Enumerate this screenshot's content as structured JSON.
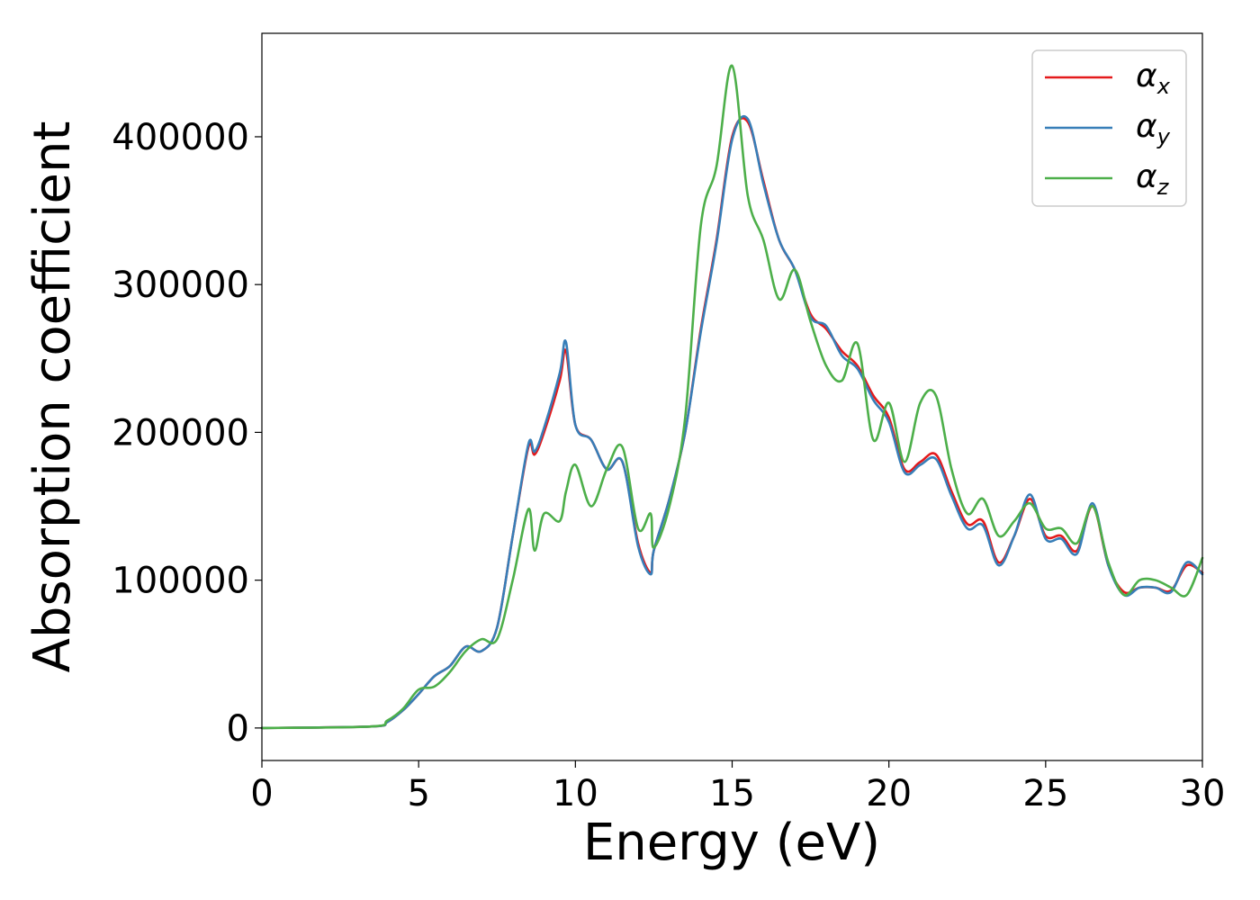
{
  "chart_data": {
    "type": "line",
    "title": "",
    "xlabel": "Energy (eV)",
    "ylabel": "Absorption coefficient",
    "xlim": [
      0,
      30
    ],
    "ylim": [
      -22000,
      470000
    ],
    "xticks": [
      0,
      5,
      10,
      15,
      20,
      25,
      30
    ],
    "yticks": [
      0,
      100000,
      200000,
      300000,
      400000
    ],
    "grid": false,
    "legend_position": "top-right",
    "x": [
      0,
      3.5,
      4.0,
      4.5,
      5.0,
      5.5,
      6.0,
      6.5,
      7.0,
      7.5,
      8.0,
      8.5,
      8.7,
      9.0,
      9.5,
      9.7,
      10.0,
      10.5,
      11.0,
      11.5,
      12.0,
      12.4,
      12.5,
      13.0,
      13.5,
      14.0,
      14.5,
      15.0,
      15.5,
      16.0,
      16.5,
      17.0,
      17.5,
      18.0,
      18.5,
      19.0,
      19.5,
      20.0,
      20.5,
      21.0,
      21.5,
      22.0,
      22.5,
      23.0,
      23.5,
      24.0,
      24.5,
      25.0,
      25.5,
      26.0,
      26.5,
      27.0,
      27.5,
      28.0,
      28.5,
      29.0,
      29.5,
      30.0
    ],
    "series": [
      {
        "name": "α",
        "subscript": "x",
        "color": "#e41a1c",
        "values": [
          0,
          1000,
          4000,
          12000,
          23000,
          35000,
          42000,
          55000,
          52000,
          68000,
          130000,
          190000,
          185000,
          200000,
          235000,
          255000,
          205000,
          195000,
          175000,
          180000,
          125000,
          105000,
          120000,
          155000,
          200000,
          270000,
          330000,
          400000,
          410000,
          370000,
          330000,
          310000,
          280000,
          270000,
          255000,
          245000,
          225000,
          210000,
          175000,
          180000,
          185000,
          160000,
          138000,
          140000,
          112000,
          130000,
          155000,
          130000,
          130000,
          120000,
          150000,
          110000,
          92000,
          95000,
          95000,
          93000,
          110000,
          105000
        ]
      },
      {
        "name": "α",
        "subscript": "y",
        "color": "#377eb8",
        "values": [
          0,
          1000,
          4000,
          12000,
          23000,
          35000,
          42000,
          55000,
          52000,
          68000,
          130000,
          192000,
          187000,
          203000,
          240000,
          261000,
          205000,
          195000,
          175000,
          180000,
          123000,
          104000,
          120000,
          155000,
          200000,
          268000,
          328000,
          398000,
          412000,
          368000,
          330000,
          310000,
          278000,
          272000,
          252000,
          243000,
          222000,
          207000,
          173000,
          178000,
          182000,
          157000,
          135000,
          137000,
          110000,
          130000,
          158000,
          128000,
          128000,
          118000,
          152000,
          110000,
          90000,
          95000,
          95000,
          92000,
          112000,
          104000
        ]
      },
      {
        "name": "α",
        "subscript": "z",
        "color": "#4daf4a",
        "values": [
          0,
          1000,
          5000,
          13000,
          26000,
          28000,
          38000,
          52000,
          60000,
          60000,
          100000,
          148000,
          120000,
          145000,
          140000,
          160000,
          178000,
          150000,
          175000,
          190000,
          135000,
          145000,
          122000,
          150000,
          210000,
          340000,
          380000,
          448000,
          360000,
          330000,
          290000,
          310000,
          275000,
          245000,
          235000,
          260000,
          195000,
          220000,
          180000,
          220000,
          225000,
          175000,
          145000,
          155000,
          130000,
          140000,
          152000,
          135000,
          135000,
          125000,
          150000,
          112000,
          90000,
          100000,
          100000,
          95000,
          90000,
          115000
        ]
      }
    ]
  }
}
